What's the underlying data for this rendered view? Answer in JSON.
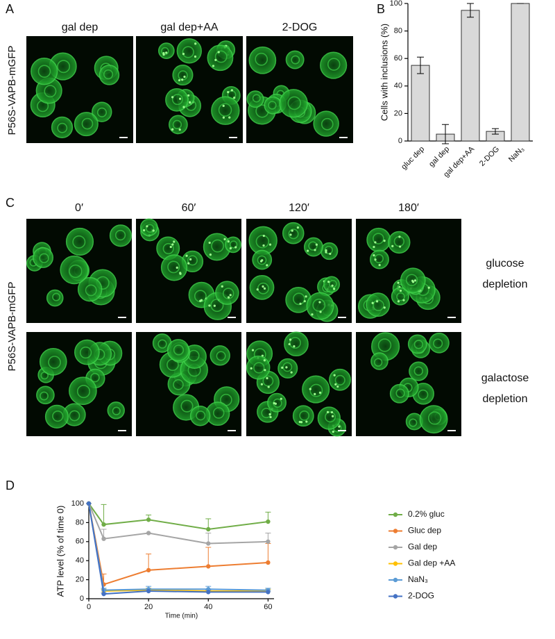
{
  "figure": {
    "panels": [
      "A",
      "B",
      "C",
      "D"
    ],
    "panel_a": {
      "image_titles": [
        "gal dep",
        "gal dep+AA",
        "2-DOG"
      ],
      "ylabel": "P56S-VAPB-mGFP"
    },
    "panel_c": {
      "time_labels": [
        "0′",
        "60′",
        "120′",
        "180′"
      ],
      "row_labels": [
        [
          "glucose",
          "depletion"
        ],
        [
          "galactose",
          "depletion"
        ]
      ],
      "ylabel": "P56S-VAPB-mGFP"
    }
  },
  "chart_data": [
    {
      "type": "bar",
      "ylabel": "Cells with inclusions (%)",
      "categories": [
        "gluc dep",
        "gal dep",
        "gal dep+AA",
        "2-DOG",
        "NaN₃"
      ],
      "values": [
        55,
        5,
        95,
        7,
        100
      ],
      "errors": [
        6,
        7,
        5,
        2,
        0
      ],
      "color": "#d9d9d9",
      "ylim": [
        0,
        100
      ],
      "yticks": [
        0,
        20,
        40,
        60,
        80,
        100
      ]
    },
    {
      "type": "line",
      "xlabel": "Time (min)",
      "ylabel": "ATP level (% of time 0)",
      "x": [
        0,
        5,
        20,
        40,
        60
      ],
      "xlim": [
        0,
        62
      ],
      "xticks": [
        0,
        20,
        40,
        60
      ],
      "ylim": [
        0,
        100
      ],
      "yticks": [
        0,
        20,
        40,
        60,
        80,
        100
      ],
      "series": [
        {
          "name": "0.2% gluc",
          "color": "#70ad47",
          "values": [
            100,
            78,
            83,
            73,
            81
          ],
          "errors": [
            0,
            21,
            5,
            11,
            10
          ]
        },
        {
          "name": "Gluc dep",
          "color": "#ed7d31",
          "values": [
            100,
            15,
            30,
            34,
            38
          ],
          "errors": [
            0,
            11,
            17,
            20,
            20
          ]
        },
        {
          "name": "Gal dep",
          "color": "#a5a5a5",
          "values": [
            100,
            63,
            69,
            58,
            60
          ],
          "errors": [
            0,
            10,
            0,
            11,
            9
          ]
        },
        {
          "name": "Gal dep +AA",
          "color": "#ffc000",
          "values": [
            100,
            8,
            9,
            8,
            8
          ],
          "errors": [
            0,
            2,
            2,
            2,
            2
          ]
        },
        {
          "name": "NaN₃",
          "color": "#5b9bd5",
          "values": [
            100,
            9,
            10,
            10,
            9
          ],
          "errors": [
            0,
            2,
            3,
            3,
            2
          ]
        },
        {
          "name": "2-DOG",
          "color": "#4472c4",
          "values": [
            100,
            5,
            8,
            7,
            7
          ],
          "errors": [
            0,
            1,
            2,
            2,
            1
          ]
        }
      ]
    }
  ]
}
